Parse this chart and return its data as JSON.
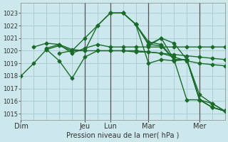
{
  "xlabel": "Pression niveau de la mer( hPa )",
  "background_color": "#cce8ec",
  "grid_color": "#aacdd4",
  "line_color": "#1a6b2a",
  "vline_color": "#555555",
  "ylim": [
    1014.5,
    1023.8
  ],
  "yticks": [
    1015,
    1016,
    1017,
    1018,
    1019,
    1020,
    1021,
    1022,
    1023
  ],
  "xlim": [
    0,
    96
  ],
  "day_labels": [
    "Dim",
    "Jeu",
    "Lun",
    "Mar",
    "Mer"
  ],
  "day_positions": [
    0,
    30,
    42,
    60,
    84
  ],
  "vline_positions": [
    30,
    42,
    60,
    84
  ],
  "lines": [
    {
      "x": [
        0,
        6,
        12,
        18,
        24,
        30,
        36,
        42,
        48,
        54,
        60,
        66,
        72,
        78,
        84,
        90,
        96
      ],
      "y": [
        1018.0,
        1019.0,
        1020.1,
        1020.4,
        1020.0,
        1020.0,
        1022.0,
        1023.0,
        1023.0,
        1022.1,
        1020.5,
        1020.4,
        1019.3,
        1016.1,
        1016.1,
        1015.5,
        1015.2
      ]
    },
    {
      "x": [
        6,
        12,
        18,
        24,
        30,
        36,
        42,
        48,
        54,
        60,
        66,
        72,
        78,
        84,
        90,
        96
      ],
      "y": [
        1020.3,
        1020.6,
        1020.5,
        1020.1,
        1020.0,
        1020.0,
        1020.0,
        1020.0,
        1020.0,
        1019.9,
        1019.8,
        1019.7,
        1019.6,
        1019.5,
        1019.4,
        1019.3
      ]
    },
    {
      "x": [
        12,
        18,
        24,
        30,
        36,
        42,
        48,
        54,
        60,
        66,
        72,
        78,
        84,
        90,
        96
      ],
      "y": [
        1020.1,
        1019.2,
        1017.8,
        1019.5,
        1020.0,
        1020.0,
        1020.0,
        1019.9,
        1019.9,
        1019.8,
        1019.5,
        1019.2,
        1019.0,
        1018.9,
        1018.8
      ]
    },
    {
      "x": [
        12,
        18,
        24,
        30,
        36,
        42,
        48,
        54,
        60,
        66,
        72,
        78,
        84,
        90,
        96
      ],
      "y": [
        1020.2,
        1020.5,
        1019.8,
        1020.2,
        1020.5,
        1020.3,
        1020.3,
        1020.3,
        1020.3,
        1020.3,
        1020.3,
        1020.3,
        1020.3,
        1020.3,
        1020.3
      ]
    },
    {
      "x": [
        18,
        24,
        30,
        36,
        42,
        48,
        54,
        60,
        66,
        72,
        78,
        84,
        90,
        96
      ],
      "y": [
        1019.8,
        1020.0,
        1021.0,
        1022.0,
        1023.0,
        1023.0,
        1022.1,
        1019.0,
        1019.3,
        1019.2,
        1019.3,
        1016.1,
        1015.5,
        1015.2
      ]
    },
    {
      "x": [
        42,
        48,
        54,
        60,
        66,
        72,
        78,
        84,
        90,
        96
      ],
      "y": [
        1023.0,
        1023.0,
        1022.1,
        1020.5,
        1021.0,
        1020.6,
        1019.3,
        1016.1,
        1015.5,
        1015.2
      ]
    },
    {
      "x": [
        54,
        60,
        66,
        72,
        78,
        84,
        90,
        96
      ],
      "y": [
        1022.1,
        1020.7,
        1020.5,
        1019.3,
        1019.3,
        1016.5,
        1015.8,
        1015.2
      ]
    },
    {
      "x": [
        60,
        66,
        72,
        78,
        84,
        90,
        96
      ],
      "y": [
        1020.4,
        1021.0,
        1019.3,
        1019.3,
        1016.1,
        1015.8,
        1015.2
      ]
    }
  ],
  "marker": "D",
  "marker_size": 2.5,
  "line_width": 1.0,
  "tick_fontsize": 6,
  "xlabel_fontsize": 7
}
